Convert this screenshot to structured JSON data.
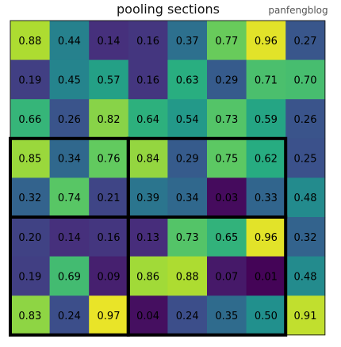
{
  "chart_data": {
    "type": "heatmap",
    "title": "pooling sections",
    "watermark": "panfengblog",
    "rows": 8,
    "cols": 8,
    "values": [
      [
        "0.88",
        "0.44",
        "0.14",
        "0.16",
        "0.37",
        "0.77",
        "0.96",
        "0.27"
      ],
      [
        "0.19",
        "0.45",
        "0.57",
        "0.16",
        "0.63",
        "0.29",
        "0.71",
        "0.70"
      ],
      [
        "0.66",
        "0.26",
        "0.82",
        "0.64",
        "0.54",
        "0.73",
        "0.59",
        "0.26"
      ],
      [
        "0.85",
        "0.34",
        "0.76",
        "0.84",
        "0.29",
        "0.75",
        "0.62",
        "0.25"
      ],
      [
        "0.32",
        "0.74",
        "0.21",
        "0.39",
        "0.34",
        "0.03",
        "0.33",
        "0.48"
      ],
      [
        "0.20",
        "0.14",
        "0.16",
        "0.13",
        "0.73",
        "0.65",
        "0.96",
        "0.32"
      ],
      [
        "0.19",
        "0.69",
        "0.09",
        "0.86",
        "0.88",
        "0.07",
        "0.01",
        "0.48"
      ],
      [
        "0.83",
        "0.24",
        "0.97",
        "0.04",
        "0.24",
        "0.35",
        "0.50",
        "0.91"
      ]
    ],
    "colormap": "viridis",
    "value_range": [
      0,
      1
    ],
    "pooling_sections": [
      {
        "row_start": 3,
        "row_end": 4,
        "col_start": 0,
        "col_end": 2
      },
      {
        "row_start": 3,
        "row_end": 4,
        "col_start": 3,
        "col_end": 6
      },
      {
        "row_start": 5,
        "row_end": 7,
        "col_start": 0,
        "col_end": 2
      },
      {
        "row_start": 5,
        "row_end": 7,
        "col_start": 3,
        "col_end": 6
      }
    ],
    "section_color": "#000000",
    "grid": false
  }
}
